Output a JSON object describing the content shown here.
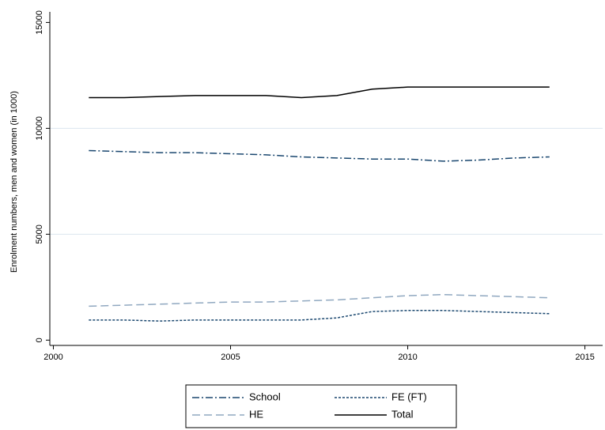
{
  "chart_data": {
    "type": "line",
    "y_label": "Enrolment numbers, men and women (in 1000)",
    "x": [
      2001,
      2002,
      2003,
      2004,
      2005,
      2006,
      2007,
      2008,
      2009,
      2010,
      2011,
      2012,
      2013,
      2014
    ],
    "series": [
      {
        "name": "School",
        "color": "#1a476f",
        "dash": "9,3,2,3",
        "values": [
          8950,
          8900,
          8850,
          8850,
          8800,
          8750,
          8650,
          8600,
          8550,
          8550,
          8450,
          8500,
          8600,
          8650
        ]
      },
      {
        "name": "FE (FT)",
        "color": "#1a476f",
        "dash": "3,2",
        "values": [
          950,
          950,
          900,
          950,
          950,
          950,
          950,
          1050,
          1350,
          1400,
          1400,
          1350,
          1300,
          1250
        ]
      },
      {
        "name": "HE",
        "color": "#90a8c0",
        "dash": "10,5",
        "values": [
          1600,
          1650,
          1700,
          1750,
          1800,
          1800,
          1850,
          1900,
          2000,
          2100,
          2150,
          2100,
          2050,
          2000
        ]
      },
      {
        "name": "Total",
        "color": "#000000",
        "dash": "none",
        "values": [
          11450,
          11450,
          11500,
          11550,
          11550,
          11550,
          11450,
          11550,
          11850,
          11950,
          11950,
          11950,
          11950,
          11950
        ]
      }
    ],
    "xlim": [
      1999.9,
      2015.5
    ],
    "xticks": [
      2000,
      2005,
      2010,
      2015
    ],
    "ylim": [
      -250,
      15500
    ],
    "yticks": [
      0,
      5000,
      10000,
      15000
    ],
    "grid": true,
    "legend": "bottom"
  }
}
